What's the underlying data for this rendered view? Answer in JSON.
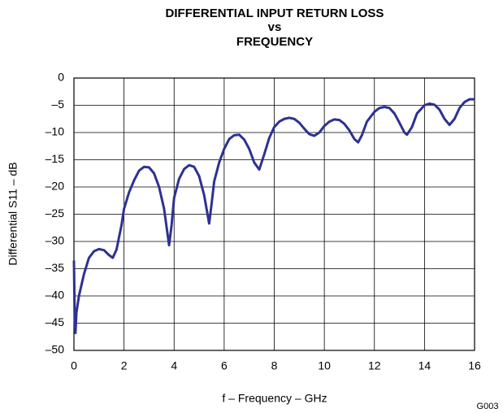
{
  "chart_data": {
    "type": "line",
    "title": [
      "DIFFERENTIAL INPUT RETURN LOSS",
      "vs",
      "FREQUENCY"
    ],
    "x_label": "f – Frequency – GHz",
    "y_label": "Differential S11 – dB",
    "annotation": "G003",
    "xlim": [
      0,
      16
    ],
    "xticks": [
      0,
      2,
      4,
      6,
      8,
      10,
      12,
      14,
      16
    ],
    "ylim": [
      -50,
      0
    ],
    "yticks": [
      0,
      {
        "value": -5,
        "label": "–5"
      },
      {
        "value": -10,
        "label": "–10"
      },
      {
        "value": -15,
        "label": "–15"
      },
      {
        "value": -20,
        "label": "–20"
      },
      {
        "value": -25,
        "label": "–25"
      },
      {
        "value": -30,
        "label": "–30"
      },
      {
        "value": -35,
        "label": "–35"
      },
      {
        "value": -40,
        "label": "–40"
      },
      {
        "value": -45,
        "label": "–45"
      },
      {
        "value": -50,
        "label": "–50"
      }
    ],
    "grid": true,
    "series": [
      {
        "color": "#2e3192",
        "x": [
          0,
          0.03,
          0.06,
          0.1,
          0.2,
          0.4,
          0.6,
          0.8,
          1.0,
          1.2,
          1.4,
          1.55,
          1.7,
          1.9,
          2.0,
          2.2,
          2.4,
          2.6,
          2.8,
          3.0,
          3.2,
          3.4,
          3.6,
          3.8,
          3.9,
          4.0,
          4.2,
          4.4,
          4.6,
          4.8,
          5.0,
          5.2,
          5.4,
          5.5,
          5.6,
          5.8,
          6.0,
          6.2,
          6.4,
          6.6,
          6.8,
          7.0,
          7.2,
          7.4,
          7.6,
          7.8,
          8.0,
          8.2,
          8.4,
          8.6,
          8.8,
          9.0,
          9.2,
          9.4,
          9.6,
          9.8,
          10.0,
          10.2,
          10.4,
          10.6,
          10.8,
          11.0,
          11.2,
          11.35,
          11.5,
          11.7,
          12.0,
          12.2,
          12.4,
          12.6,
          12.8,
          13.0,
          13.2,
          13.3,
          13.5,
          13.7,
          14.0,
          14.2,
          14.4,
          14.6,
          14.8,
          15.0,
          15.2,
          15.4,
          15.6,
          15.8,
          16.0
        ],
        "values": [
          -33.5,
          -44,
          -46.8,
          -43,
          -40,
          -36,
          -33,
          -31.8,
          -31.4,
          -31.6,
          -32.5,
          -33,
          -31.5,
          -27,
          -24,
          -21,
          -18.8,
          -17,
          -16.3,
          -16.4,
          -17.5,
          -20,
          -24,
          -30.7,
          -27,
          -22,
          -18.5,
          -16.7,
          -16,
          -16.3,
          -18,
          -21.5,
          -26.7,
          -23,
          -19,
          -15.5,
          -13,
          -11.2,
          -10.5,
          -10.4,
          -11.3,
          -13,
          -15.5,
          -16.8,
          -14,
          -11,
          -9,
          -8,
          -7.5,
          -7.3,
          -7.5,
          -8.2,
          -9.3,
          -10.3,
          -10.6,
          -10,
          -8.8,
          -8,
          -7.6,
          -7.7,
          -8.4,
          -9.6,
          -11.2,
          -11.8,
          -10.5,
          -8,
          -6.2,
          -5.5,
          -5.3,
          -5.5,
          -6.5,
          -8.2,
          -10,
          -10.4,
          -9,
          -6.5,
          -5,
          -4.7,
          -4.9,
          -5.8,
          -7.5,
          -8.6,
          -7.5,
          -5.5,
          -4.4,
          -3.9,
          -3.9
        ]
      }
    ]
  }
}
